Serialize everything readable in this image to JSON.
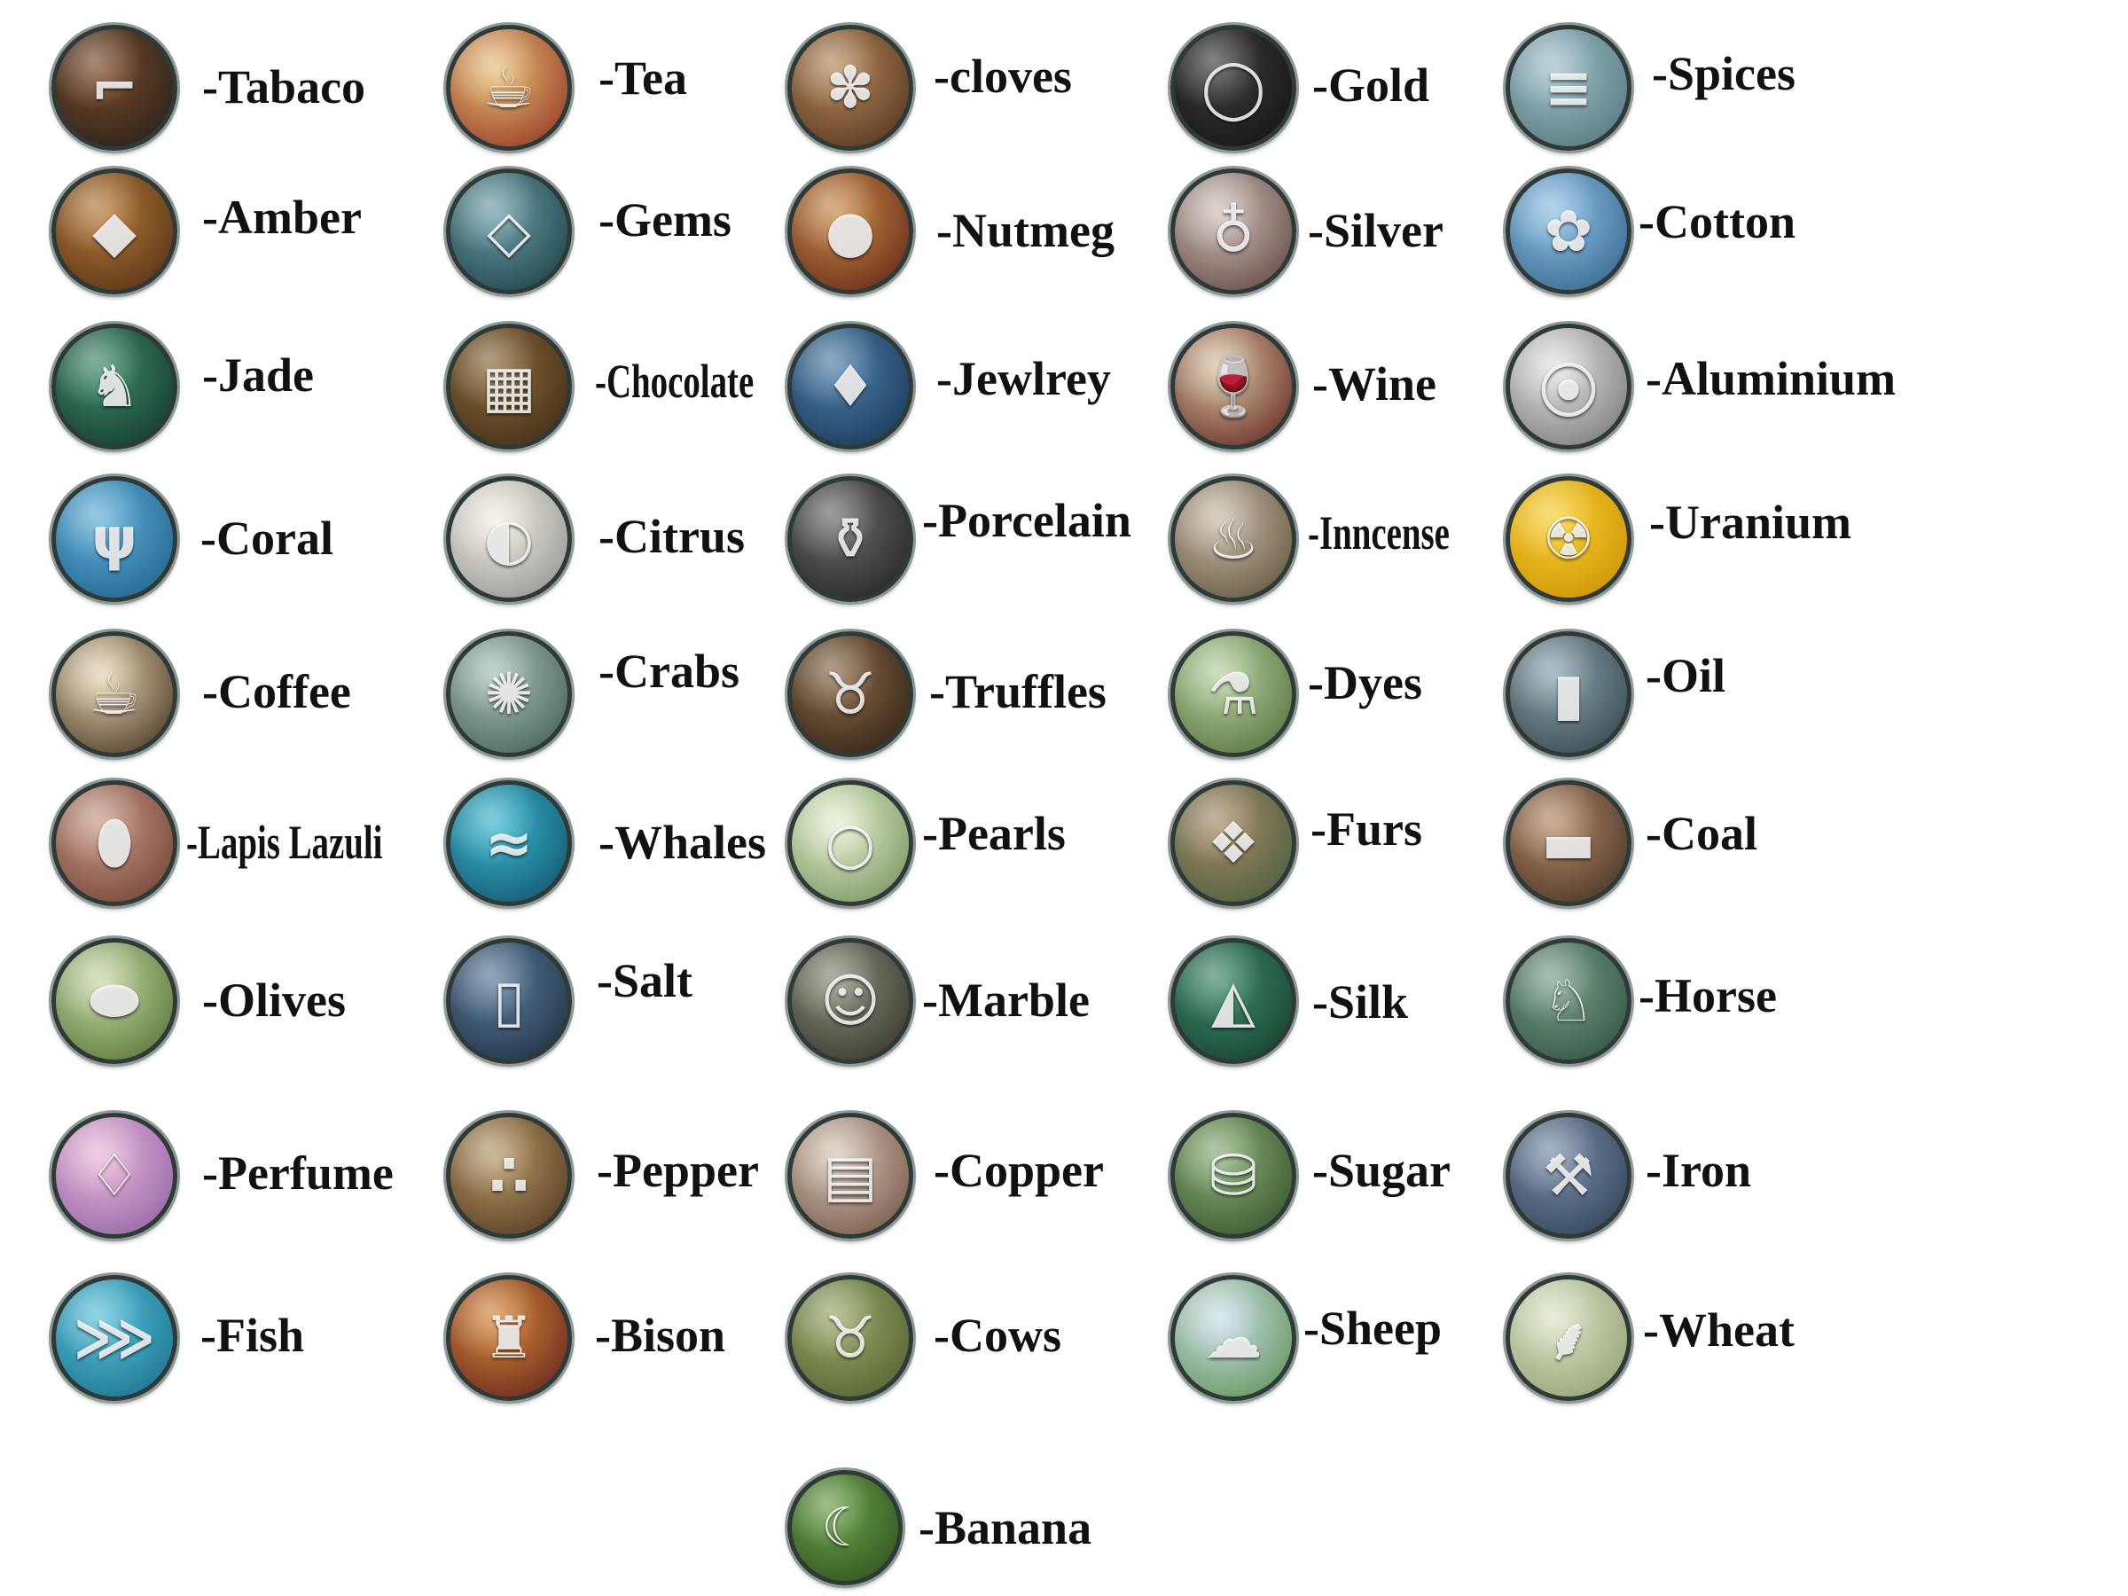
{
  "resources": [
    {
      "label": "-Tabaco",
      "icon": "tobacco-pipe-icon",
      "glyph": "⌐",
      "colors": [
        "#7b4a28",
        "#1c1c1c"
      ]
    },
    {
      "label": "-Tea",
      "icon": "tea-cup-icon",
      "glyph": "☕",
      "colors": [
        "#e8c27a",
        "#8b2a1a"
      ]
    },
    {
      "label": "-cloves",
      "icon": "cloves-icon",
      "glyph": "✽",
      "colors": [
        "#b88a5a",
        "#4a2b1a"
      ]
    },
    {
      "label": "-Gold",
      "icon": "gold-ring-icon",
      "glyph": "◯",
      "colors": [
        "#3b3b3b",
        "#101010"
      ]
    },
    {
      "label": "-Spices",
      "icon": "cinnamon-sticks-icon",
      "glyph": "≡",
      "colors": [
        "#9fc0c8",
        "#4d6f78"
      ]
    },
    {
      "label": "-Amber",
      "icon": "amber-brooch-icon",
      "glyph": "◆",
      "colors": [
        "#b77a3a",
        "#4a2a12"
      ]
    },
    {
      "label": "-Gems",
      "icon": "diamond-icon",
      "glyph": "◇",
      "colors": [
        "#6f9ea8",
        "#12383e"
      ]
    },
    {
      "label": "-Nutmeg",
      "icon": "nutmeg-icon",
      "glyph": "●",
      "colors": [
        "#c98c4a",
        "#5a1e12"
      ]
    },
    {
      "label": "-Silver",
      "icon": "silver-goblet-icon",
      "glyph": "♁",
      "colors": [
        "#cfc3bb",
        "#5a3a38"
      ]
    },
    {
      "label": "-Cotton",
      "icon": "cotton-flower-icon",
      "glyph": "✿",
      "colors": [
        "#8fc2e6",
        "#2d5c86"
      ]
    },
    {
      "label": "-Jade",
      "icon": "jade-statue-icon",
      "glyph": "♞",
      "colors": [
        "#3f8a6a",
        "#0f3226"
      ]
    },
    {
      "label": "-Chocolate",
      "icon": "chocolate-bar-icon",
      "glyph": "▦",
      "colors": [
        "#8a6a3a",
        "#3a2612"
      ]
    },
    {
      "label": "-Jewlrey",
      "icon": "necklace-icon",
      "glyph": "♦",
      "colors": [
        "#4f7fa8",
        "#123050"
      ]
    },
    {
      "label": "-Wine",
      "icon": "wine-glass-icon",
      "glyph": "🍷",
      "colors": [
        "#d9c6a2",
        "#5a1a1a"
      ]
    },
    {
      "label": "-Aluminium",
      "icon": "aluminium-rods-icon",
      "glyph": "⦿",
      "colors": [
        "#e4e4e4",
        "#6e6e6e"
      ]
    },
    {
      "label": "-Coral",
      "icon": "coral-icon",
      "glyph": "ψ",
      "colors": [
        "#5fb0d8",
        "#1a5a86"
      ]
    },
    {
      "label": "-Citrus",
      "icon": "orange-icon",
      "glyph": "◐",
      "colors": [
        "#f4f0e2",
        "#8a8a8a"
      ]
    },
    {
      "label": "-Porcelain",
      "icon": "porcelain-vase-icon",
      "glyph": "⚱",
      "colors": [
        "#6b6b6b",
        "#1e1e1e"
      ]
    },
    {
      "label": "-Inncense",
      "icon": "incense-burner-icon",
      "glyph": "♨",
      "colors": [
        "#c8bca8",
        "#5a4a32"
      ]
    },
    {
      "label": "-Uranium",
      "icon": "radiation-icon",
      "glyph": "☢",
      "colors": [
        "#f8d030",
        "#c88a00"
      ]
    },
    {
      "label": "-Coffee",
      "icon": "coffee-cup-icon",
      "glyph": "☕",
      "colors": [
        "#e8d6b2",
        "#3a2818"
      ]
    },
    {
      "label": "-Crabs",
      "icon": "crab-icon",
      "glyph": "✺",
      "colors": [
        "#a8c0b8",
        "#3a5850"
      ]
    },
    {
      "label": "-Truffles",
      "icon": "truffle-pig-icon",
      "glyph": "♉",
      "colors": [
        "#8a6a4a",
        "#2a1a0e"
      ]
    },
    {
      "label": "-Dyes",
      "icon": "dye-bottle-icon",
      "glyph": "⚗",
      "colors": [
        "#b8d0a2",
        "#4a6a32"
      ]
    },
    {
      "label": "-Oil",
      "icon": "oil-barrel-icon",
      "glyph": "▮",
      "colors": [
        "#8aa2ac",
        "#2e3e44"
      ]
    },
    {
      "label": "-Lapis Lazuli",
      "icon": "lapis-pendant-icon",
      "glyph": "⬮",
      "colors": [
        "#c89a88",
        "#6a3a2e"
      ]
    },
    {
      "label": "-Whales",
      "icon": "whale-icon",
      "glyph": "≈",
      "colors": [
        "#3ab8d0",
        "#0e4a62"
      ]
    },
    {
      "label": "-Pearls",
      "icon": "pearl-oyster-icon",
      "glyph": "○",
      "colors": [
        "#e8f0d0",
        "#6a8a52"
      ]
    },
    {
      "label": "-Furs",
      "icon": "fur-pelt-icon",
      "glyph": "❖",
      "colors": [
        "#a88a6a",
        "#3e5a3a"
      ]
    },
    {
      "label": "-Coal",
      "icon": "coal-cart-icon",
      "glyph": "▬",
      "colors": [
        "#b88a6a",
        "#3a2a1e"
      ]
    },
    {
      "label": "-Olives",
      "icon": "olive-icon",
      "glyph": "⬬",
      "colors": [
        "#c8d8a8",
        "#4a6a2a"
      ]
    },
    {
      "label": "-Salt",
      "icon": "salt-shaker-icon",
      "glyph": "▯",
      "colors": [
        "#5a7a9a",
        "#1a2a3a"
      ]
    },
    {
      "label": "-Marble",
      "icon": "marble-statue-icon",
      "glyph": "☺",
      "colors": [
        "#8a8a7a",
        "#2e2e26"
      ]
    },
    {
      "label": "-Silk",
      "icon": "silk-roll-icon",
      "glyph": "◭",
      "colors": [
        "#3e8a6a",
        "#123a2a"
      ]
    },
    {
      "label": "-Horse",
      "icon": "horse-head-icon",
      "glyph": "♘",
      "colors": [
        "#7aa08a",
        "#2a4a3a"
      ]
    },
    {
      "label": "-Perfume",
      "icon": "perfume-bottle-icon",
      "glyph": "♢",
      "colors": [
        "#e8b8d8",
        "#8a5aa2"
      ]
    },
    {
      "label": "-Pepper",
      "icon": "pepper-icon",
      "glyph": "∴",
      "colors": [
        "#b89a6a",
        "#4a3018"
      ]
    },
    {
      "label": "-Copper",
      "icon": "copper-bars-icon",
      "glyph": "▤",
      "colors": [
        "#d8c8b8",
        "#6a4a3a"
      ]
    },
    {
      "label": "-Sugar",
      "icon": "sugar-sack-icon",
      "glyph": "⛁",
      "colors": [
        "#8ab07a",
        "#2e4a22"
      ]
    },
    {
      "label": "-Iron",
      "icon": "anvil-icon",
      "glyph": "⚒",
      "colors": [
        "#7a8ea8",
        "#2a3a52"
      ]
    },
    {
      "label": "-Fish",
      "icon": "fish-icon",
      "glyph": "⋙",
      "colors": [
        "#5ac0d8",
        "#126a8a"
      ]
    },
    {
      "label": "-Bison",
      "icon": "bison-icon",
      "glyph": "♜",
      "colors": [
        "#d88a3a",
        "#5a1a1a"
      ]
    },
    {
      "label": "-Cows",
      "icon": "cow-icon",
      "glyph": "♉",
      "colors": [
        "#9aa86a",
        "#4a5a2a"
      ]
    },
    {
      "label": "-Sheep",
      "icon": "sheep-icon",
      "glyph": "☁",
      "colors": [
        "#c8e0e8",
        "#5a8a4a"
      ]
    },
    {
      "label": "-Wheat",
      "icon": "wheat-icon",
      "glyph": "⸙",
      "colors": [
        "#dce4c8",
        "#8a9a6a"
      ]
    },
    {
      "label": "-Banana",
      "icon": "banana-icon",
      "glyph": "☾",
      "colors": [
        "#6aa04a",
        "#2a4a1a"
      ]
    }
  ]
}
